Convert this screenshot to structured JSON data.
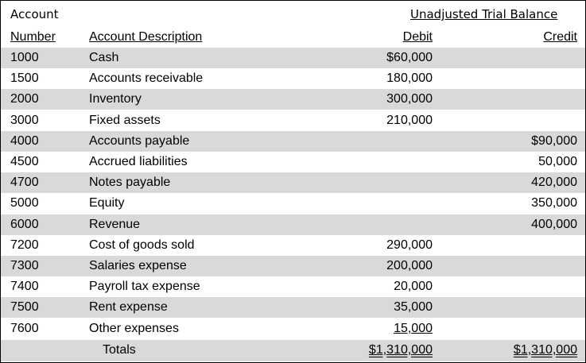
{
  "header": {
    "account_label": "Account",
    "section_title": "Unadjusted Trial Balance",
    "col_number": "Number",
    "col_description": "Account Description",
    "col_debit": "Debit",
    "col_credit": "Credit"
  },
  "rows": [
    {
      "number": "1000",
      "description": "Cash",
      "debit": "$60,000",
      "credit": ""
    },
    {
      "number": "1500",
      "description": "Accounts receivable",
      "debit": "180,000",
      "credit": ""
    },
    {
      "number": "2000",
      "description": "Inventory",
      "debit": "300,000",
      "credit": ""
    },
    {
      "number": "3000",
      "description": "Fixed assets",
      "debit": "210,000",
      "credit": ""
    },
    {
      "number": "4000",
      "description": "Accounts payable",
      "debit": "",
      "credit": "$90,000"
    },
    {
      "number": "4500",
      "description": "Accrued liabilities",
      "debit": "",
      "credit": "50,000"
    },
    {
      "number": "4700",
      "description": "Notes payable",
      "debit": "",
      "credit": "420,000"
    },
    {
      "number": "5000",
      "description": "Equity",
      "debit": "",
      "credit": "350,000"
    },
    {
      "number": "6000",
      "description": "Revenue",
      "debit": "",
      "credit": "400,000"
    },
    {
      "number": "7200",
      "description": "Cost of goods sold",
      "debit": "290,000",
      "credit": ""
    },
    {
      "number": "7300",
      "description": "Salaries expense",
      "debit": "200,000",
      "credit": ""
    },
    {
      "number": "7400",
      "description": "Payroll tax expense",
      "debit": "20,000",
      "credit": ""
    },
    {
      "number": "7500",
      "description": "Rent expense",
      "debit": "35,000",
      "credit": ""
    },
    {
      "number": "7600",
      "description": "Other expenses",
      "debit": "15,000",
      "credit": ""
    }
  ],
  "totals": {
    "label": "Totals",
    "debit": "$1,310,000",
    "credit": "$1,310,000"
  },
  "colors": {
    "shade": "#d9d9d9",
    "border": "#000000"
  }
}
